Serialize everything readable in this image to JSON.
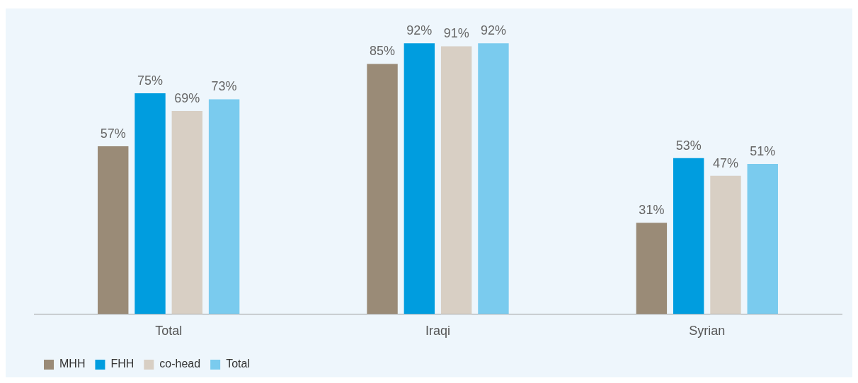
{
  "chart_data": {
    "type": "bar",
    "categories": [
      "Total",
      "Iraqi",
      "Syrian"
    ],
    "series": [
      {
        "name": "MHH",
        "color": "#9a8b77",
        "values": [
          57,
          85,
          31
        ],
        "value_labels": [
          "57%",
          "85%",
          "31%"
        ]
      },
      {
        "name": "FHH",
        "color": "#009ddf",
        "values": [
          75,
          92,
          53
        ],
        "value_labels": [
          "75%",
          "92%",
          "53%"
        ]
      },
      {
        "name": "co-head",
        "color": "#d8cfc4",
        "values": [
          69,
          91,
          47
        ],
        "value_labels": [
          "69%",
          "91%",
          "47%"
        ]
      },
      {
        "name": "Total",
        "color": "#7acbee",
        "values": [
          73,
          92,
          51
        ],
        "value_labels": [
          "73%",
          "92%",
          "51%"
        ]
      }
    ],
    "legend": "bottom left",
    "grid": false
  }
}
